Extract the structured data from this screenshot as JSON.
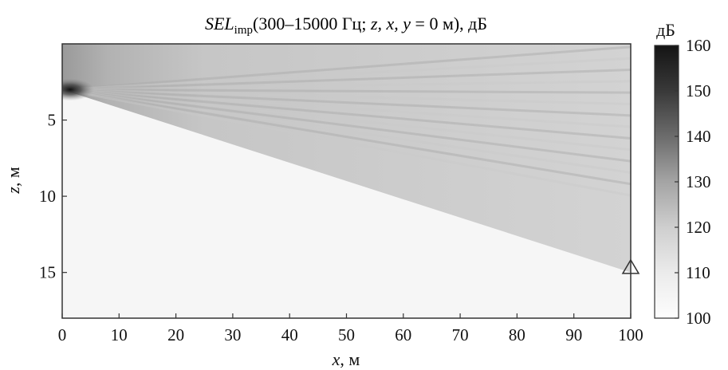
{
  "chart_data": {
    "type": "heatmap",
    "title": {
      "main": "SEL",
      "sub": "imp",
      "rest": "(300–15000 Гц; ",
      "vars": "z, x, y",
      "tail": " = 0 м), дБ"
    },
    "xlabel": {
      "var": "x",
      "unit": ", м"
    },
    "ylabel": {
      "var": "z",
      "unit": ", м"
    },
    "xlim": [
      0,
      100
    ],
    "ylim": [
      18,
      0
    ],
    "xticks": [
      "0",
      "10",
      "20",
      "30",
      "40",
      "50",
      "60",
      "70",
      "80",
      "90",
      "100"
    ],
    "yticks": [
      "5",
      "10",
      "15"
    ],
    "colorbar": {
      "label": "дБ",
      "range": [
        100,
        160
      ],
      "ticks": [
        "160",
        "150",
        "140",
        "130",
        "120",
        "110",
        "100"
      ],
      "colormap": "grayscale (white = 100 дБ, black = 160 дБ)"
    },
    "source": {
      "x": 0,
      "z": 3,
      "level_db": 160
    },
    "insonified_region": {
      "upper_edge_z": 0,
      "lower_edge": [
        {
          "x": 0,
          "z": 3
        },
        {
          "x": 100,
          "z": 15
        }
      ],
      "level_near_source_db": 150,
      "level_far_db": 128
    },
    "shadow_zone_level_db": 104,
    "receiver_marker": {
      "shape": "triangle",
      "x": 100,
      "z": 14.7
    }
  }
}
